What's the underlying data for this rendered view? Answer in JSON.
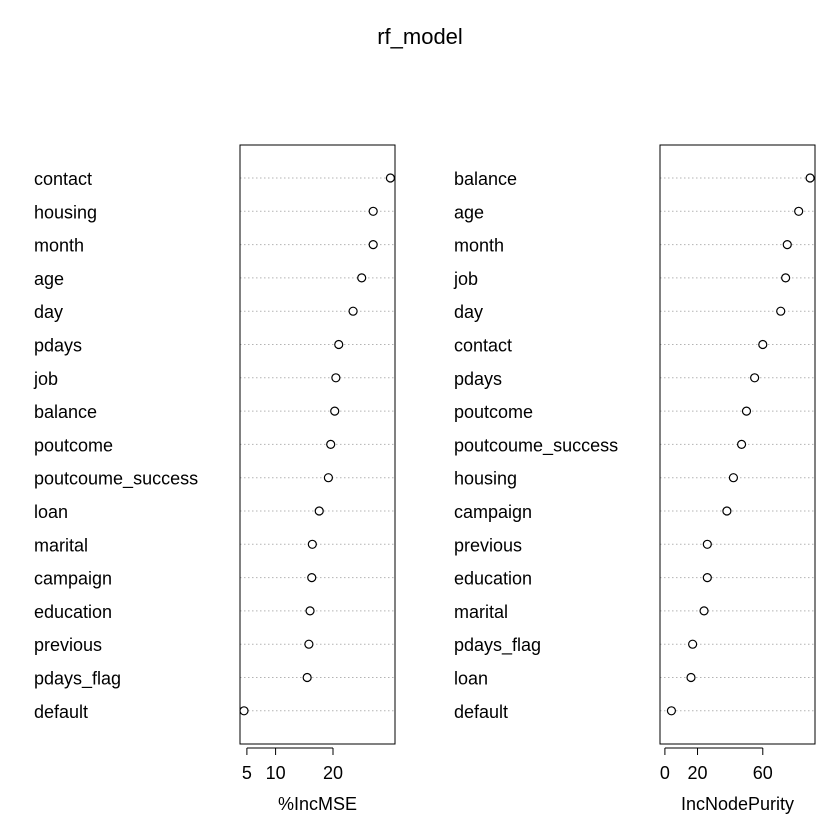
{
  "title": "rf_model",
  "chart_data": [
    {
      "type": "scatter",
      "subtype": "dotchart",
      "xlabel": "%IncMSE",
      "xlim": [
        3.8,
        30.8
      ],
      "x_ticks": [
        5,
        10,
        20
      ],
      "grid": "dotted horizontal lines",
      "categories": [
        "contact",
        "housing",
        "month",
        "age",
        "day",
        "pdays",
        "job",
        "balance",
        "poutcome",
        "poutcoume_success",
        "loan",
        "marital",
        "campaign",
        "education",
        "previous",
        "pdays_flag",
        "default"
      ],
      "values": [
        30.0,
        27.0,
        27.0,
        25.0,
        23.5,
        21.0,
        20.5,
        20.3,
        19.6,
        19.2,
        17.6,
        16.4,
        16.3,
        16.0,
        15.8,
        15.5,
        4.5
      ]
    },
    {
      "type": "scatter",
      "subtype": "dotchart",
      "xlabel": "IncNodePurity",
      "xlim": [
        -3,
        92
      ],
      "x_ticks": [
        0,
        20,
        60
      ],
      "grid": "dotted horizontal lines",
      "categories": [
        "balance",
        "age",
        "month",
        "job",
        "day",
        "contact",
        "pdays",
        "poutcome",
        "poutcoume_success",
        "housing",
        "campaign",
        "previous",
        "education",
        "marital",
        "pdays_flag",
        "loan",
        "default"
      ],
      "values": [
        89.0,
        82.0,
        75.0,
        74.0,
        71.0,
        60.0,
        55.0,
        50.0,
        47.0,
        42.0,
        38.0,
        26.0,
        26.0,
        24.0,
        17.0,
        16.0,
        4.0
      ]
    }
  ]
}
